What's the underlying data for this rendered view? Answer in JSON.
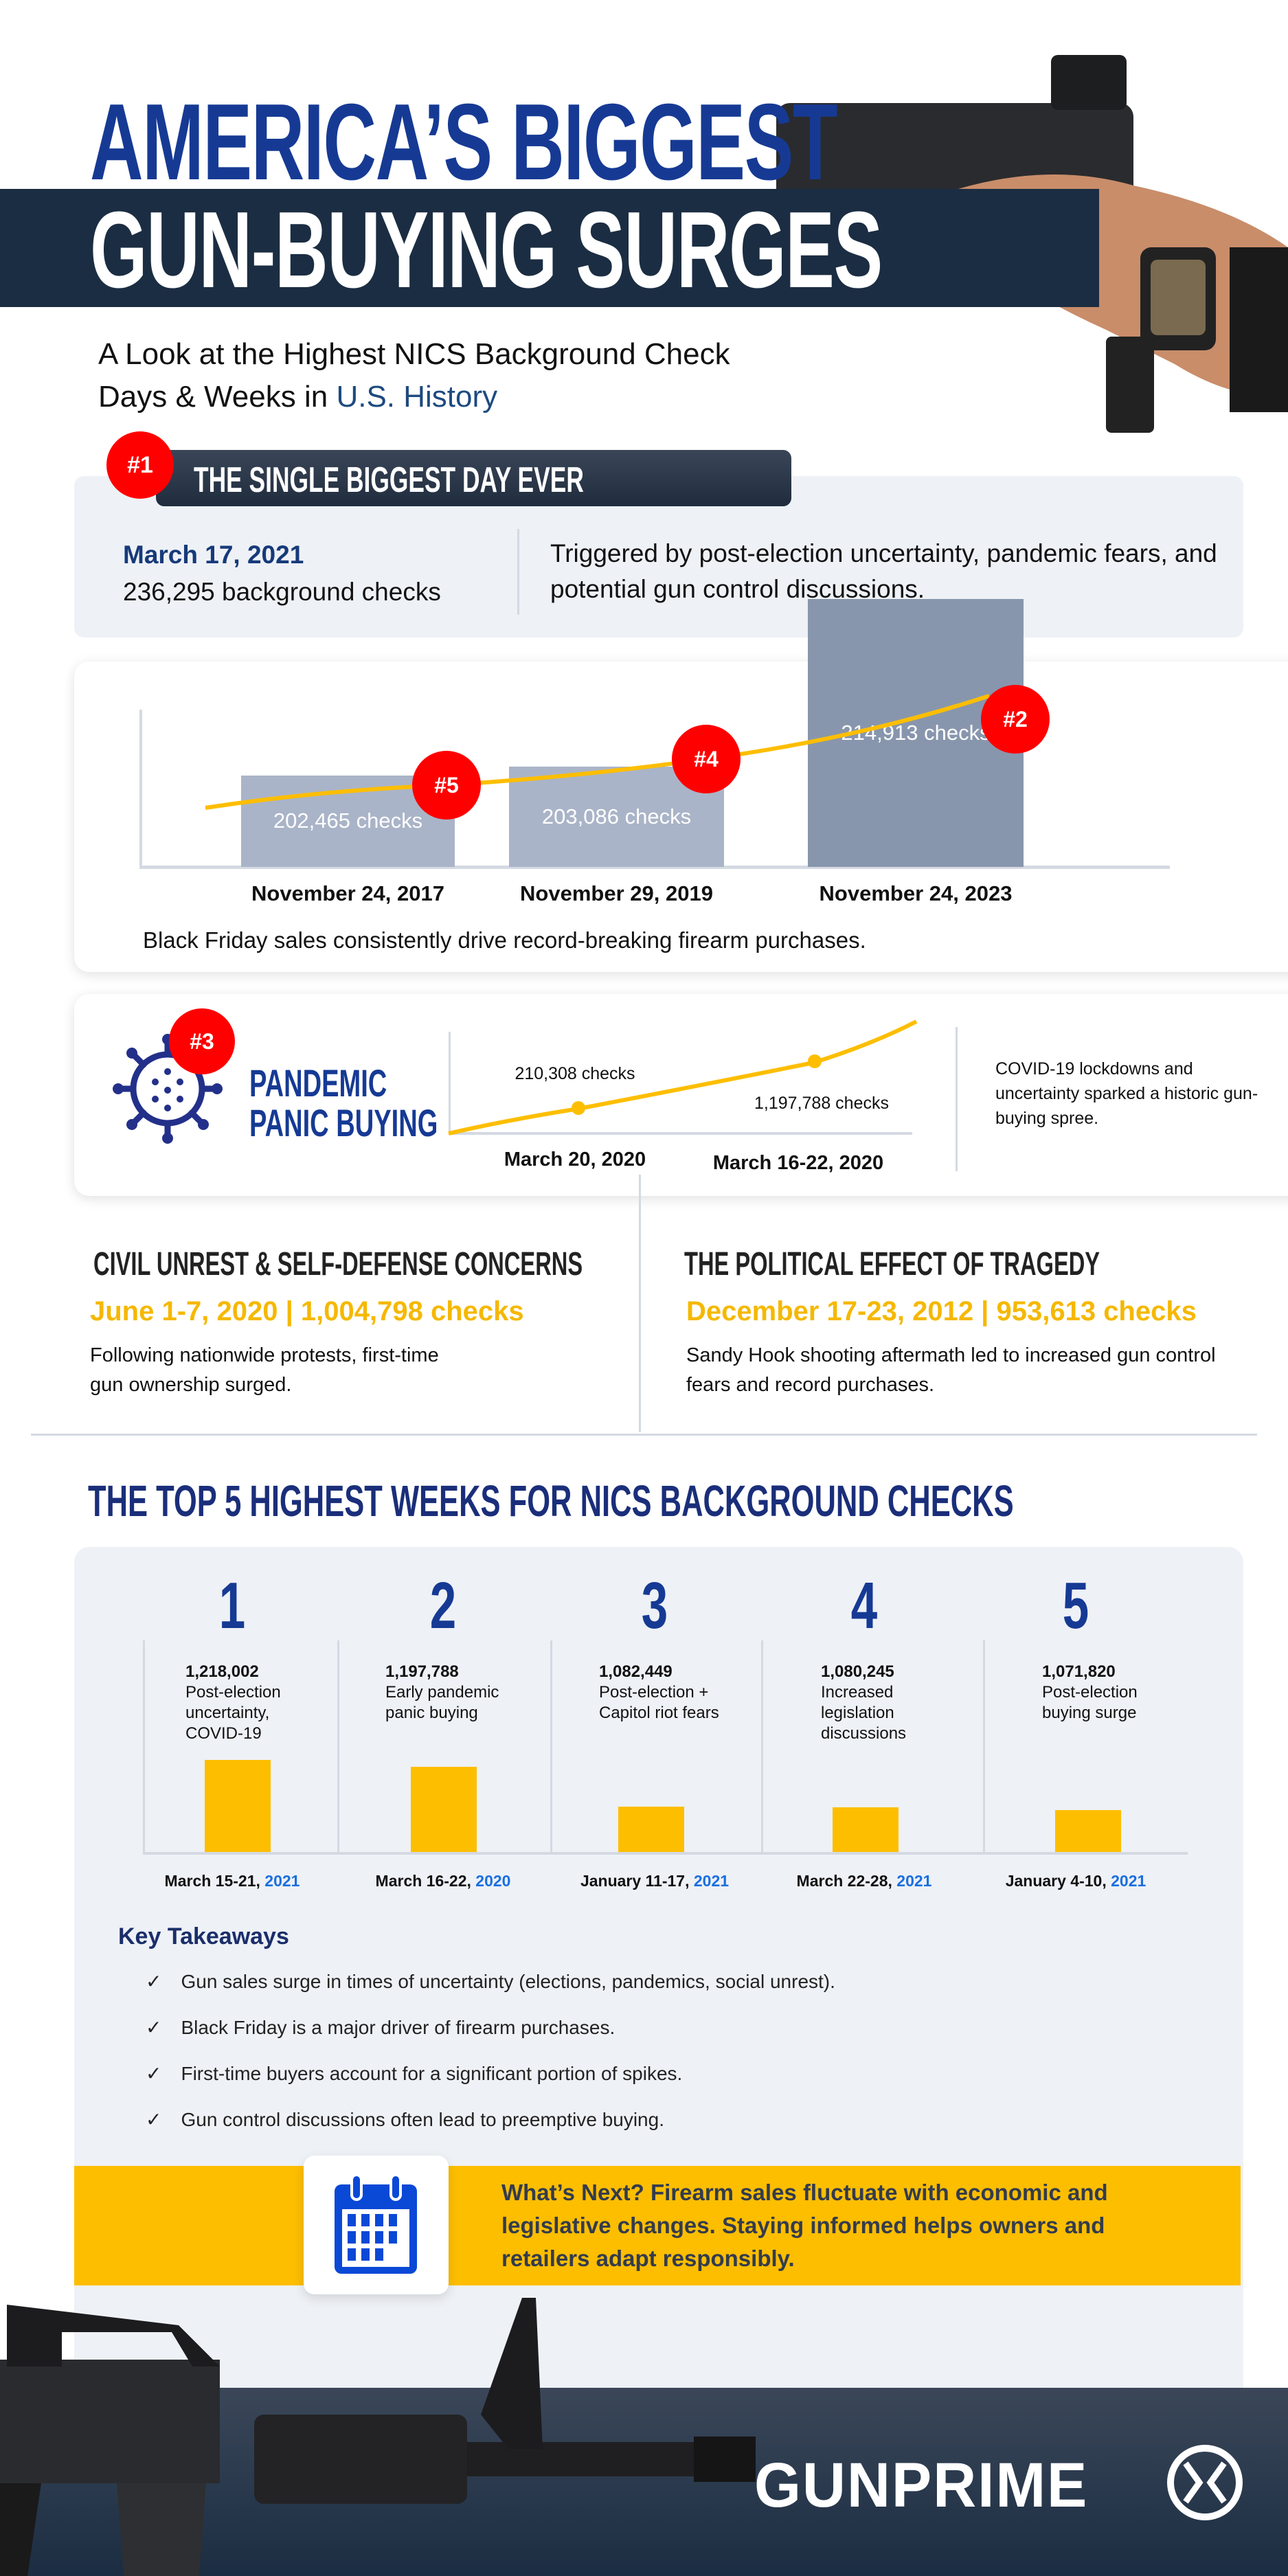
{
  "header": {
    "title_line1": "AMERICA’S BIGGEST",
    "title_line2": "GUN-BUYING SURGES",
    "subtitle_part1": "A Look at the Highest NICS Background Check",
    "subtitle_part2": "Days & Weeks in",
    "subtitle_highlight": "U.S. History"
  },
  "biggest_day": {
    "badge": "#1",
    "heading": "THE SINGLE BIGGEST DAY EVER",
    "date": "March 17, 2021",
    "checks": "236,295 background checks",
    "description": "Triggered by post-election uncertainty, pandemic fears, and potential gun control discussions."
  },
  "black_friday": {
    "caption": "Black Friday sales consistently drive record-breaking firearm purchases.",
    "items": [
      {
        "rank": "#5",
        "date": "November 24, 2017",
        "label": "202,465  checks"
      },
      {
        "rank": "#4",
        "date": "November 29, 2019",
        "label": "203,086 checks"
      },
      {
        "rank": "#2",
        "date": "November 24, 2023",
        "label": "214,913 checks"
      }
    ]
  },
  "pandemic": {
    "badge": "#3",
    "title_line1": "PANDEMIC",
    "title_line2": "PANIC BUYING",
    "point1_label": "210,308 checks",
    "point2_label": "1,197,788 checks",
    "date1": "March 20, 2020",
    "date2": "March 16-22, 2020",
    "description": "COVID-19 lockdowns and uncertainty sparked a historic gun-buying spree."
  },
  "civil_unrest": {
    "heading": "CIVIL UNREST & SELF-DEFENSE CONCERNS",
    "stat": "June 1-7, 2020 | 1,004,798 checks",
    "description": "Following nationwide protests, first-time gun ownership surged."
  },
  "tragedy": {
    "heading": "THE POLITICAL EFFECT OF TRAGEDY",
    "stat": "December 17-23, 2012 | 953,613 checks",
    "description": "Sandy Hook shooting aftermath led to increased gun control fears and record purchases."
  },
  "top5": {
    "heading": "THE TOP 5 HIGHEST WEEKS FOR NICS BACKGROUND CHECKS",
    "items": [
      {
        "rank": "1",
        "value": "1,218,002",
        "desc": "Post-election uncertainty, COVID-19",
        "date": "March 15-21,",
        "year": "2021"
      },
      {
        "rank": "2",
        "value": "1,197,788",
        "desc": "Early pandemic panic buying",
        "date": "March 16-22,",
        "year": "2020"
      },
      {
        "rank": "3",
        "value": "1,082,449",
        "desc": "Post-election + Capitol riot fears",
        "date": "January 11-17,",
        "year": "2021"
      },
      {
        "rank": "4",
        "value": "1,080,245",
        "desc": "Increased legislation discussions",
        "date": "March 22-28,",
        "year": "2021"
      },
      {
        "rank": "5",
        "value": "1,071,820",
        "desc": "Post-election buying surge",
        "date": "January 4-10,",
        "year": "2021"
      }
    ]
  },
  "takeaways": {
    "heading": "Key Takeaways",
    "items": [
      "Gun sales surge in times of uncertainty (elections, pandemics, social unrest).",
      "Black Friday is a major driver of firearm purchases.",
      "First-time buyers account for a significant portion of spikes.",
      "Gun control discussions often lead to preemptive buying."
    ]
  },
  "whats_next": {
    "text": "What’s Next? Firearm sales fluctuate with economic and legislative changes. Staying informed helps owners and retailers adapt responsibly."
  },
  "footer": {
    "logo": "GUNPRIME"
  },
  "colors": {
    "navy": "#1b2d42",
    "blue": "#163a94",
    "yellow": "#fdbe00",
    "red": "#ff0000",
    "bar_light": "#aab4c8",
    "bar_dark": "#8896ad"
  },
  "chart_data": [
    {
      "type": "bar",
      "categories": [
        "November 24, 2017",
        "November 29, 2019",
        "November 24, 2023"
      ],
      "values": [
        202465,
        203086,
        214913
      ],
      "xlabel": "",
      "ylabel": ""
    },
    {
      "type": "line",
      "categories": [
        "March 20, 2020",
        "March 16-22, 2020"
      ],
      "values": [
        210308,
        1197788
      ]
    },
    {
      "type": "bar",
      "categories": [
        "March 15-21, 2021",
        "March 16-22, 2020",
        "January 11-17, 2021",
        "March 22-28, 2021",
        "January 4-10, 2021"
      ],
      "values": [
        1218002,
        1197788,
        1082449,
        1080245,
        1071820
      ]
    }
  ]
}
